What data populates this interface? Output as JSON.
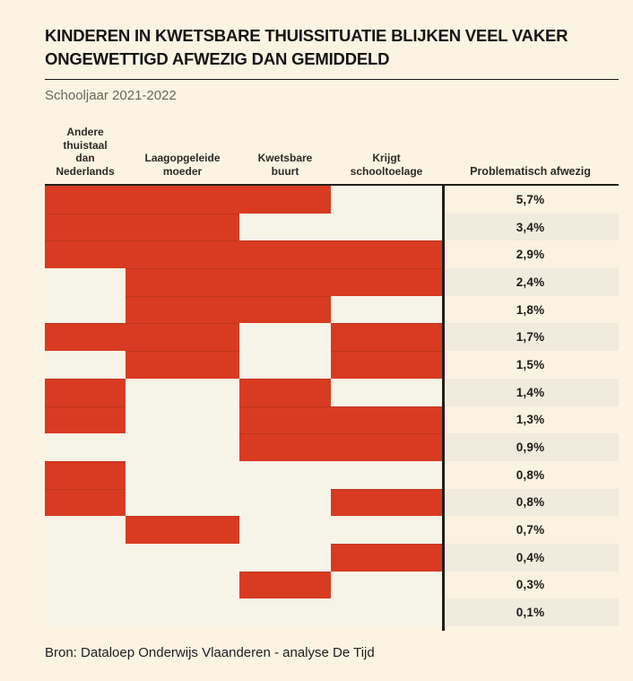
{
  "page": {
    "title": "KINDEREN IN KWETSBARE THUISSITUATIE BLIJKEN VEEL VAKER ONGEWETTIGD AFWEZIG DAN GEMIDDELD",
    "subtitle": "Schooljaar 2021-2022",
    "source": "Bron: Dataloep Onderwijs Vlaanderen - analyse De Tijd"
  },
  "chart_data": {
    "type": "table",
    "title": "KINDEREN IN KWETSBARE THUISSITUATIE BLIJKEN VEEL VAKER ONGEWETTIGD AFWEZIG DAN GEMIDDELD",
    "subtitle": "Schooljaar 2021-2022",
    "source": "Bron: Dataloep Onderwijs Vlaanderen - analyse De Tijd",
    "columns": [
      "Andere thuistaal dan Nederlands",
      "Laagopgeleide moeder",
      "Kwetsbare buurt",
      "Krijgt schooltoelage",
      "Problematisch afwezig"
    ],
    "legend_note": "",
    "rows": [
      {
        "flags": [
          true,
          true,
          true,
          false
        ],
        "value": "5,7%"
      },
      {
        "flags": [
          true,
          true,
          false,
          false
        ],
        "value": "3,4%"
      },
      {
        "flags": [
          true,
          true,
          true,
          true
        ],
        "value": "2,9%"
      },
      {
        "flags": [
          false,
          true,
          true,
          true
        ],
        "value": "2,4%"
      },
      {
        "flags": [
          false,
          true,
          true,
          false
        ],
        "value": "1,8%"
      },
      {
        "flags": [
          true,
          true,
          false,
          true
        ],
        "value": "1,7%"
      },
      {
        "flags": [
          false,
          true,
          false,
          true
        ],
        "value": "1,5%"
      },
      {
        "flags": [
          true,
          false,
          true,
          false
        ],
        "value": "1,4%"
      },
      {
        "flags": [
          true,
          false,
          true,
          true
        ],
        "value": "1,3%"
      },
      {
        "flags": [
          false,
          false,
          true,
          true
        ],
        "value": "0,9%"
      },
      {
        "flags": [
          true,
          false,
          false,
          false
        ],
        "value": "0,8%"
      },
      {
        "flags": [
          true,
          false,
          false,
          true
        ],
        "value": "0,8%"
      },
      {
        "flags": [
          false,
          true,
          false,
          false
        ],
        "value": "0,7%"
      },
      {
        "flags": [
          false,
          false,
          false,
          true
        ],
        "value": "0,4%"
      },
      {
        "flags": [
          false,
          false,
          true,
          false
        ],
        "value": "0,3%"
      },
      {
        "flags": [
          false,
          false,
          false,
          false
        ],
        "value": "0,1%"
      }
    ],
    "colors": {
      "filled_cell": "#d83b22",
      "empty_cell": "#f6f3e7",
      "page_background": "#fdf3e3",
      "value_cell_odd": "#fbf2e2",
      "value_cell_even": "#f1ebde",
      "line": "#211f19"
    },
    "layout": {
      "grid": "on-off matrix, 4 factor columns + 1 value column",
      "legend_position": "none"
    }
  }
}
